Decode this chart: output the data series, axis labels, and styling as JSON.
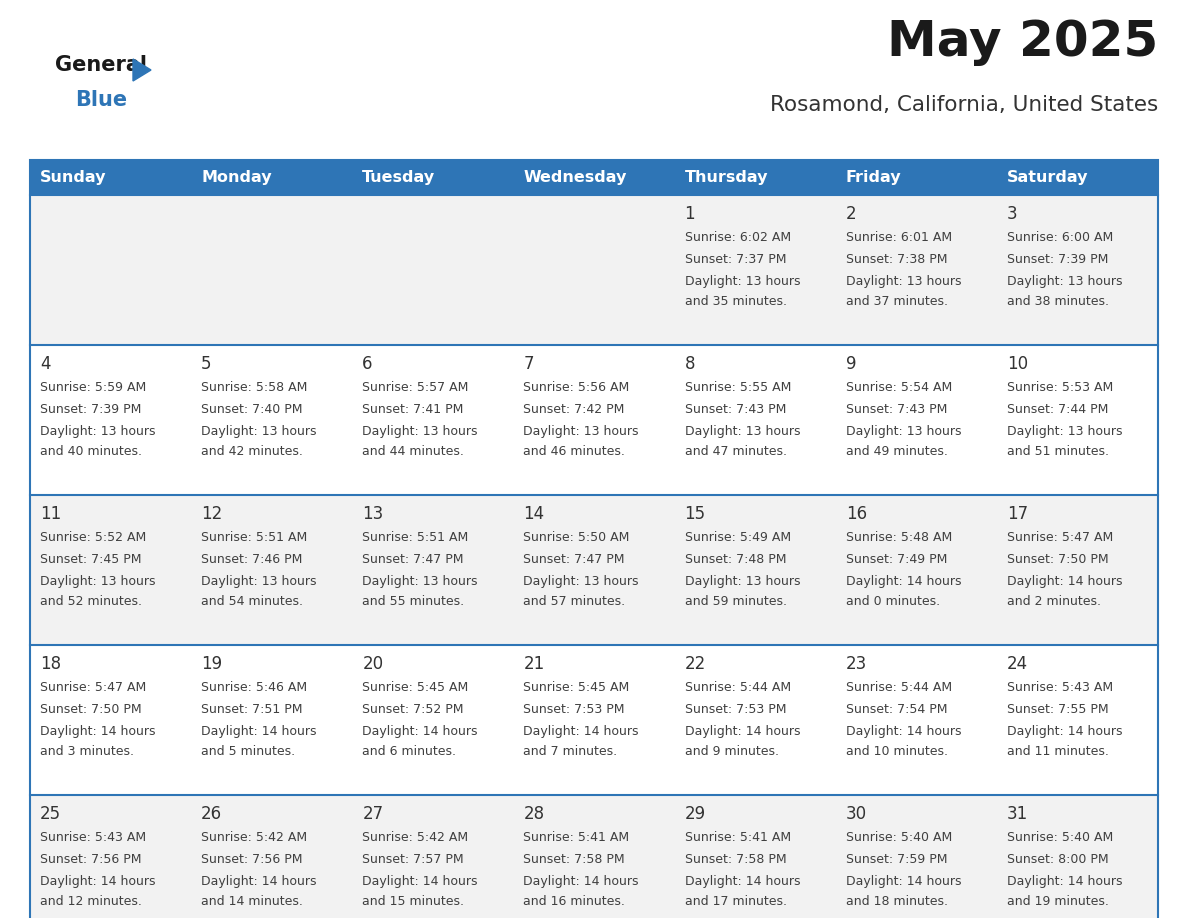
{
  "title": "May 2025",
  "subtitle": "Rosamond, California, United States",
  "header_bg": "#2E75B6",
  "header_text_color": "#FFFFFF",
  "day_names": [
    "Sunday",
    "Monday",
    "Tuesday",
    "Wednesday",
    "Thursday",
    "Friday",
    "Saturday"
  ],
  "cell_bg_odd": "#F2F2F2",
  "cell_bg_even": "#FFFFFF",
  "text_color": "#404040",
  "day_num_color": "#333333",
  "separator_color": "#2E75B6",
  "logo_general_color": "#1a1a1a",
  "logo_blue_color": "#2E75B6",
  "logo_triangle_color": "#2E75B6",
  "weeks": [
    [
      {
        "day": "",
        "sunrise": "",
        "sunset": "",
        "daylight": ""
      },
      {
        "day": "",
        "sunrise": "",
        "sunset": "",
        "daylight": ""
      },
      {
        "day": "",
        "sunrise": "",
        "sunset": "",
        "daylight": ""
      },
      {
        "day": "",
        "sunrise": "",
        "sunset": "",
        "daylight": ""
      },
      {
        "day": "1",
        "sunrise": "Sunrise: 6:02 AM",
        "sunset": "Sunset: 7:37 PM",
        "daylight": "Daylight: 13 hours and 35 minutes."
      },
      {
        "day": "2",
        "sunrise": "Sunrise: 6:01 AM",
        "sunset": "Sunset: 7:38 PM",
        "daylight": "Daylight: 13 hours and 37 minutes."
      },
      {
        "day": "3",
        "sunrise": "Sunrise: 6:00 AM",
        "sunset": "Sunset: 7:39 PM",
        "daylight": "Daylight: 13 hours and 38 minutes."
      }
    ],
    [
      {
        "day": "4",
        "sunrise": "Sunrise: 5:59 AM",
        "sunset": "Sunset: 7:39 PM",
        "daylight": "Daylight: 13 hours and 40 minutes."
      },
      {
        "day": "5",
        "sunrise": "Sunrise: 5:58 AM",
        "sunset": "Sunset: 7:40 PM",
        "daylight": "Daylight: 13 hours and 42 minutes."
      },
      {
        "day": "6",
        "sunrise": "Sunrise: 5:57 AM",
        "sunset": "Sunset: 7:41 PM",
        "daylight": "Daylight: 13 hours and 44 minutes."
      },
      {
        "day": "7",
        "sunrise": "Sunrise: 5:56 AM",
        "sunset": "Sunset: 7:42 PM",
        "daylight": "Daylight: 13 hours and 46 minutes."
      },
      {
        "day": "8",
        "sunrise": "Sunrise: 5:55 AM",
        "sunset": "Sunset: 7:43 PM",
        "daylight": "Daylight: 13 hours and 47 minutes."
      },
      {
        "day": "9",
        "sunrise": "Sunrise: 5:54 AM",
        "sunset": "Sunset: 7:43 PM",
        "daylight": "Daylight: 13 hours and 49 minutes."
      },
      {
        "day": "10",
        "sunrise": "Sunrise: 5:53 AM",
        "sunset": "Sunset: 7:44 PM",
        "daylight": "Daylight: 13 hours and 51 minutes."
      }
    ],
    [
      {
        "day": "11",
        "sunrise": "Sunrise: 5:52 AM",
        "sunset": "Sunset: 7:45 PM",
        "daylight": "Daylight: 13 hours and 52 minutes."
      },
      {
        "day": "12",
        "sunrise": "Sunrise: 5:51 AM",
        "sunset": "Sunset: 7:46 PM",
        "daylight": "Daylight: 13 hours and 54 minutes."
      },
      {
        "day": "13",
        "sunrise": "Sunrise: 5:51 AM",
        "sunset": "Sunset: 7:47 PM",
        "daylight": "Daylight: 13 hours and 55 minutes."
      },
      {
        "day": "14",
        "sunrise": "Sunrise: 5:50 AM",
        "sunset": "Sunset: 7:47 PM",
        "daylight": "Daylight: 13 hours and 57 minutes."
      },
      {
        "day": "15",
        "sunrise": "Sunrise: 5:49 AM",
        "sunset": "Sunset: 7:48 PM",
        "daylight": "Daylight: 13 hours and 59 minutes."
      },
      {
        "day": "16",
        "sunrise": "Sunrise: 5:48 AM",
        "sunset": "Sunset: 7:49 PM",
        "daylight": "Daylight: 14 hours and 0 minutes."
      },
      {
        "day": "17",
        "sunrise": "Sunrise: 5:47 AM",
        "sunset": "Sunset: 7:50 PM",
        "daylight": "Daylight: 14 hours and 2 minutes."
      }
    ],
    [
      {
        "day": "18",
        "sunrise": "Sunrise: 5:47 AM",
        "sunset": "Sunset: 7:50 PM",
        "daylight": "Daylight: 14 hours and 3 minutes."
      },
      {
        "day": "19",
        "sunrise": "Sunrise: 5:46 AM",
        "sunset": "Sunset: 7:51 PM",
        "daylight": "Daylight: 14 hours and 5 minutes."
      },
      {
        "day": "20",
        "sunrise": "Sunrise: 5:45 AM",
        "sunset": "Sunset: 7:52 PM",
        "daylight": "Daylight: 14 hours and 6 minutes."
      },
      {
        "day": "21",
        "sunrise": "Sunrise: 5:45 AM",
        "sunset": "Sunset: 7:53 PM",
        "daylight": "Daylight: 14 hours and 7 minutes."
      },
      {
        "day": "22",
        "sunrise": "Sunrise: 5:44 AM",
        "sunset": "Sunset: 7:53 PM",
        "daylight": "Daylight: 14 hours and 9 minutes."
      },
      {
        "day": "23",
        "sunrise": "Sunrise: 5:44 AM",
        "sunset": "Sunset: 7:54 PM",
        "daylight": "Daylight: 14 hours and 10 minutes."
      },
      {
        "day": "24",
        "sunrise": "Sunrise: 5:43 AM",
        "sunset": "Sunset: 7:55 PM",
        "daylight": "Daylight: 14 hours and 11 minutes."
      }
    ],
    [
      {
        "day": "25",
        "sunrise": "Sunrise: 5:43 AM",
        "sunset": "Sunset: 7:56 PM",
        "daylight": "Daylight: 14 hours and 12 minutes."
      },
      {
        "day": "26",
        "sunrise": "Sunrise: 5:42 AM",
        "sunset": "Sunset: 7:56 PM",
        "daylight": "Daylight: 14 hours and 14 minutes."
      },
      {
        "day": "27",
        "sunrise": "Sunrise: 5:42 AM",
        "sunset": "Sunset: 7:57 PM",
        "daylight": "Daylight: 14 hours and 15 minutes."
      },
      {
        "day": "28",
        "sunrise": "Sunrise: 5:41 AM",
        "sunset": "Sunset: 7:58 PM",
        "daylight": "Daylight: 14 hours and 16 minutes."
      },
      {
        "day": "29",
        "sunrise": "Sunrise: 5:41 AM",
        "sunset": "Sunset: 7:58 PM",
        "daylight": "Daylight: 14 hours and 17 minutes."
      },
      {
        "day": "30",
        "sunrise": "Sunrise: 5:40 AM",
        "sunset": "Sunset: 7:59 PM",
        "daylight": "Daylight: 14 hours and 18 minutes."
      },
      {
        "day": "31",
        "sunrise": "Sunrise: 5:40 AM",
        "sunset": "Sunset: 8:00 PM",
        "daylight": "Daylight: 14 hours and 19 minutes."
      }
    ]
  ]
}
